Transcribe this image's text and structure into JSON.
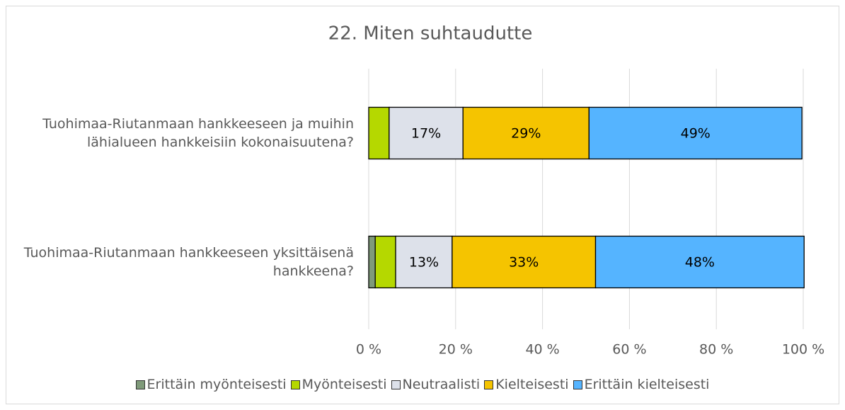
{
  "chart_data": {
    "type": "stacked-bar-horizontal",
    "title": "22. Miten suhtaudutte",
    "categories": [
      "Tuohimaa-Riutanmaan hankkeeseen ja muihin lähialueen hankkeisiin kokonaisuutena?",
      "Tuohimaa-Riutanmaan hankkeeseen yksittäisenä hankkeena?"
    ],
    "series": [
      {
        "name": "Erittäin myönteisesti",
        "color": "#7f9a7a",
        "values": [
          0,
          1.5
        ],
        "value_labels": [
          null,
          null
        ]
      },
      {
        "name": "Myönteisesti",
        "color": "#b5d800",
        "values": [
          4.7,
          4.7
        ],
        "value_labels": [
          null,
          null
        ]
      },
      {
        "name": "Neutraalisti",
        "color": "#dde1ea",
        "values": [
          17,
          13
        ],
        "value_labels": [
          "17%",
          "13%"
        ]
      },
      {
        "name": "Kielteisesti",
        "color": "#f5c400",
        "values": [
          29,
          33
        ],
        "value_labels": [
          "29%",
          "33%"
        ]
      },
      {
        "name": "Erittäin kielteisesti",
        "color": "#55b4ff",
        "values": [
          49,
          48
        ],
        "value_labels": [
          "49%",
          "48%"
        ]
      }
    ],
    "xlim": [
      0,
      100
    ],
    "xticks": [
      {
        "value": 0,
        "label": "0 %"
      },
      {
        "value": 20,
        "label": "20 %"
      },
      {
        "value": 40,
        "label": "40 %"
      },
      {
        "value": 60,
        "label": "60 %"
      },
      {
        "value": 80,
        "label": "80 %"
      },
      {
        "value": 100,
        "label": "100 %"
      }
    ],
    "grid": true,
    "legend": "bottom"
  }
}
